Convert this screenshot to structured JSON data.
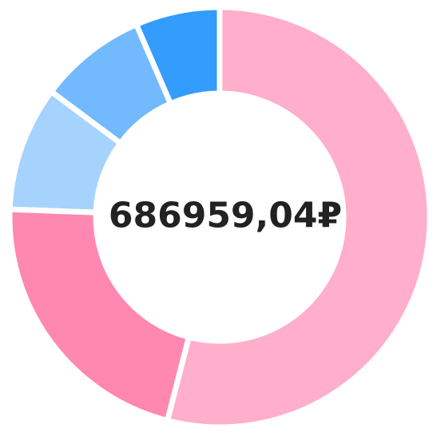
{
  "chart_data": {
    "type": "donut",
    "center_label": "686959,04₽",
    "values": [
      54,
      21.6,
      9.6,
      8.3,
      6.5
    ],
    "colors": [
      "#ffaecb",
      "#ff88b0",
      "#a5d3fd",
      "#72b9fd",
      "#339cfd"
    ]
  }
}
